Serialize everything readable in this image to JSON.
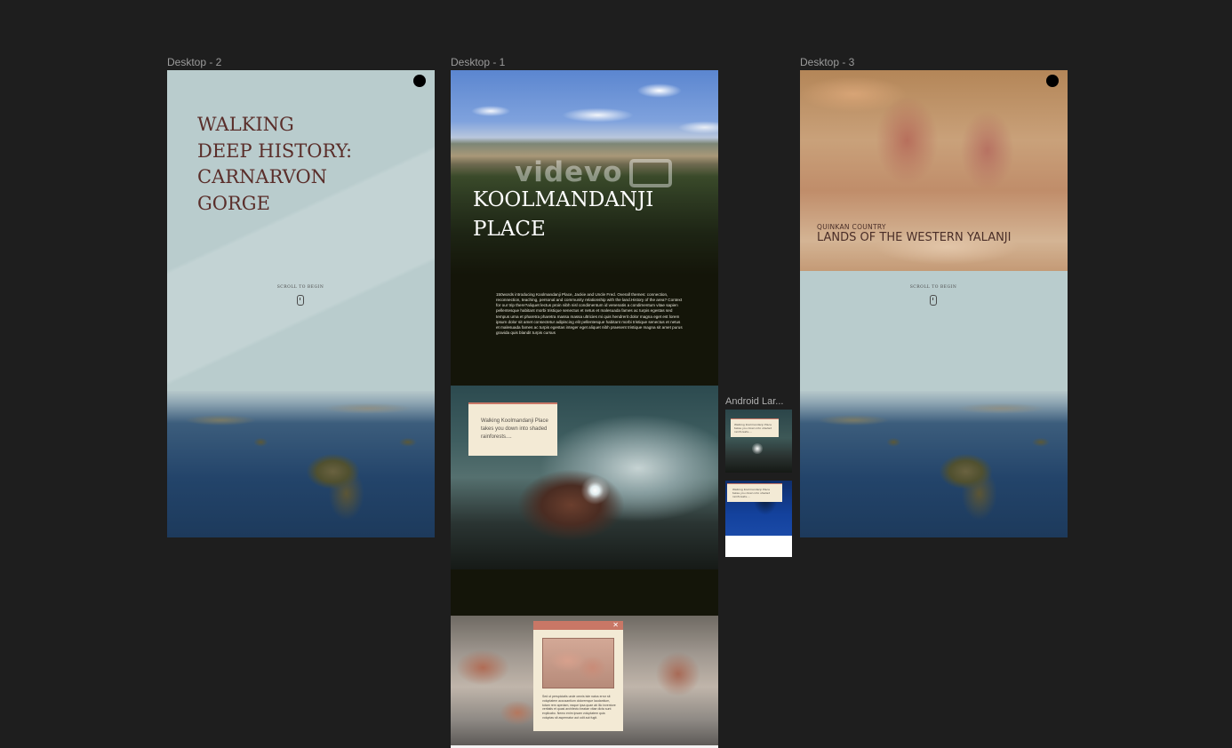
{
  "frames": {
    "desktop2": {
      "label": "Desktop - 2",
      "title_lines": [
        "WALKING",
        "DEEP HISTORY:",
        "CARNARVON",
        "GORGE"
      ],
      "scroll_hint": "SCROLL TO BEGIN"
    },
    "desktop1": {
      "label": "Desktop - 1",
      "watermark": "videvo",
      "title_lines": [
        "KOOLMANDANJI",
        "PLACE"
      ],
      "intro_text": "150words introducing Koolmandanji Place, Jackie and Uncle Fred. Overall themes: connection, reconnection, teaching, personal and community relationship with the land.History of the area? Context for our trip there?aliquet lectus proin nibh nisl condimentum id venenatis a condimentum vitae sapien pellentesque habitant morbi tristique senectus et netus et malesuada fames ac turpis egestas sed tempus urna et pharetra pharetra massa massa ultricies mi quis hendrerit dolor magna eget est lorem ipsum dolor sit amet consectetur adipiscing elit pellentesque habitant morbi tristique senectus et netus et malesuada fames ac turpis egestas integer eget aliquet nibh praesent tristique magna sit amet purus gravida quis blandit turpis cursus",
      "card_text": "Walking Koolmandanji Place takes you down into shaded rainforests....",
      "modal_close": "✕",
      "modal_text": "Sed ut perspiciatis unde omnis iste natus error sit voluptatem accusantium doloremque laudantium, totam rem aperiam, eaque ipsa quae ab illo inventore veritatis et quasi architecto beatae vitae dicta sunt explicabo. Nemo enim ipsam voluptatem quia voluptas sit aspernatur aut odit aut fugit."
    },
    "android": {
      "label": "Android Lar...",
      "card1_text": "Walking Koolmandanji Place takes you down into shaded rainforests....",
      "card2_text": "Walking Koolmandanji Place takes you down into shaded rainforests...."
    },
    "desktop3": {
      "label": "Desktop - 3",
      "subtitle": "QUINKAN COUNTRY",
      "title": "LANDS OF THE WESTERN YALANJI",
      "scroll_hint": "SCROLL TO BEGIN"
    }
  },
  "colors": {
    "canvas": "#1e1e1e",
    "sage": "#b9cccd",
    "maroon_text": "#5a2e2a",
    "dark_green": "#141509",
    "cream": "#f3ead5",
    "salmon_bar": "#c97766"
  },
  "icons": [
    "circle-dot-icon",
    "mouse-scroll-icon",
    "close-icon",
    "video-camera-icon"
  ]
}
